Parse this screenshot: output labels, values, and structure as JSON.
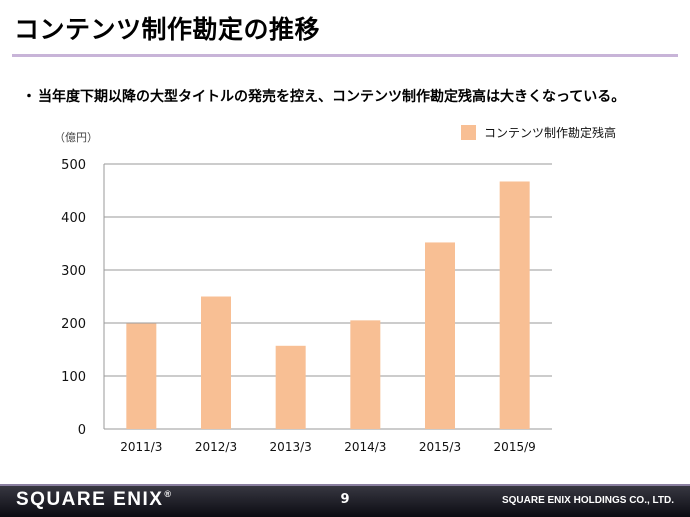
{
  "slide": {
    "title": "コンテンツ制作勘定の推移",
    "bullet_marker": "・",
    "bullet_text": "当年度下期以降の大型タイトルの発売を控え、コンテンツ制作勘定残高は大きくなっている。"
  },
  "chart_data": {
    "type": "bar",
    "unit_label": "（億円）",
    "categories": [
      "2011/3",
      "2012/3",
      "2013/3",
      "2014/3",
      "2015/3",
      "2015/9"
    ],
    "series": [
      {
        "name": "コンテンツ制作勘定残高",
        "values": [
          199,
          250,
          157,
          205,
          352,
          467
        ]
      }
    ],
    "ylim": [
      0,
      500
    ],
    "yticks": [
      0,
      100,
      200,
      300,
      400,
      500
    ],
    "grid": true,
    "legend_position": "top-right",
    "bar_color": "#f8bf94",
    "grid_color": "#9a9a9a"
  },
  "footer": {
    "logo_text": "SQUARE ENIX",
    "logo_mark": "®",
    "page_number": "9",
    "company": "SQUARE ENIX HOLDINGS CO., LTD."
  }
}
